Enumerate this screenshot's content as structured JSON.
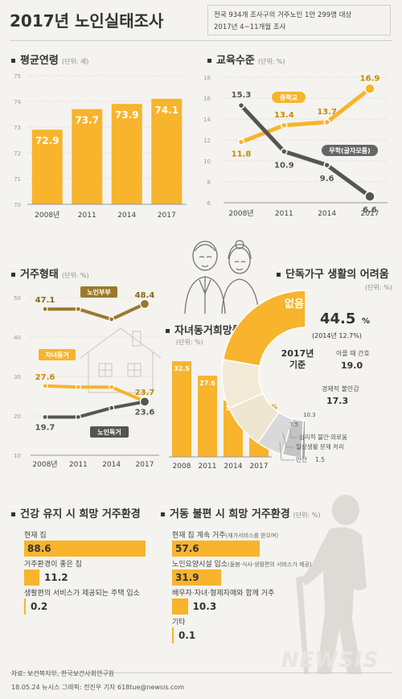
{
  "header": {
    "title": "2017년 노인실태조사",
    "note_line1": "전국 934개 조사구의 거주노인 1만 299명 대상",
    "note_line2": "2017년 4~11개월 조사"
  },
  "colors": {
    "accent": "#f7b42c",
    "dark": "#555555",
    "brown": "#9a7a2a",
    "gray": "#c8c8c8"
  },
  "sections": {
    "age": {
      "title": "평균연령",
      "unit": "(단위: 세)"
    },
    "education": {
      "title": "교육수준",
      "unit": "(단위: %)"
    },
    "residence": {
      "title": "거주형태",
      "unit": "(단위: %)"
    },
    "cohabit": {
      "title": "자녀동거희망률",
      "unit": "(단위: %)"
    },
    "difficulty": {
      "title": "단독가구 생활의 어려움",
      "unit": "(단위: %)"
    },
    "healthy": {
      "title": "건강 유지 시 희망 거주환경"
    },
    "impaired": {
      "title": "거동 불편 시 희망 거주환경",
      "unit": "(단위: %)"
    }
  },
  "chart_data": [
    {
      "id": "age",
      "type": "bar",
      "title": "평균연령",
      "unit": "(단위: 세)",
      "categories": [
        "2008년",
        "2011",
        "2014",
        "2017"
      ],
      "values": [
        72.9,
        73.7,
        73.9,
        74.1
      ],
      "value_labels": [
        "72.9",
        "73.7",
        "73.9",
        "74.1"
      ],
      "ylim": [
        70,
        75
      ],
      "yticks": [
        "70",
        "71",
        "72",
        "73",
        "74",
        "75"
      ]
    },
    {
      "id": "education",
      "type": "line",
      "title": "교육수준",
      "unit": "(단위: %)",
      "categories": [
        "2008년",
        "2011",
        "2014",
        "2017"
      ],
      "ylim": [
        6,
        18
      ],
      "yticks": [
        "6",
        "8",
        "10",
        "12",
        "14",
        "16",
        "18"
      ],
      "series": [
        {
          "name": "중학교",
          "values": [
            11.8,
            13.4,
            13.7,
            16.9
          ],
          "labels": [
            "11.8",
            "13.4",
            "13.7",
            "16.9"
          ]
        },
        {
          "name": "무학(글자모름)",
          "values": [
            15.3,
            10.9,
            9.6,
            6.6
          ],
          "labels": [
            "15.3",
            "10.9",
            "9.6",
            "6.6"
          ]
        }
      ]
    },
    {
      "id": "residence",
      "type": "line",
      "title": "거주형태",
      "unit": "(단위: %)",
      "categories": [
        "2008년",
        "2011",
        "2014",
        "2017"
      ],
      "ylim": [
        10,
        50
      ],
      "yticks": [
        "10",
        "20",
        "30",
        "40",
        "50"
      ],
      "series": [
        {
          "name": "노인부부",
          "values": [
            47.1,
            47.1,
            44.5,
            48.4
          ],
          "labels": [
            "47.1",
            "",
            "",
            "48.4"
          ]
        },
        {
          "name": "자녀동거",
          "values": [
            27.6,
            27.3,
            27.3,
            23.7
          ],
          "labels": [
            "27.6",
            "",
            "",
            "23.7"
          ]
        },
        {
          "name": "노인독거",
          "values": [
            19.7,
            19.7,
            22.0,
            23.6
          ],
          "labels": [
            "19.7",
            "",
            "",
            "23.6"
          ]
        }
      ]
    },
    {
      "id": "cohabit",
      "type": "bar",
      "title": "자녀동거희망률",
      "unit": "(단위: %)",
      "categories": [
        "2008",
        "2011",
        "2014",
        "2017"
      ],
      "values": [
        32.5,
        27.6,
        19.1,
        15.2
      ],
      "value_labels": [
        "32.5",
        "27.6",
        "19.1",
        "15.2"
      ],
      "value_suffix": "%",
      "ylim": [
        0,
        35
      ]
    },
    {
      "id": "difficulty",
      "type": "pie",
      "title": "단독가구 생활의 어려움",
      "unit": "(단위: %)",
      "center_label": [
        "2017년",
        "기준"
      ],
      "slices": [
        {
          "label": "없음",
          "value": 44.5,
          "value_label": "44.5",
          "suffix": "%",
          "note": "(2014년 12.7%)"
        },
        {
          "label": "아플 때 간호",
          "value": 19.0,
          "value_label": "19.0"
        },
        {
          "label": "경제적 불안감",
          "value": 17.3,
          "value_label": "17.3"
        },
        {
          "label": "심리적 불안·외로움",
          "value": 10.3,
          "value_label": "10.3"
        },
        {
          "label": "일상생활 문제 처리",
          "value": 7.5,
          "value_label": "7.5"
        },
        {
          "label": "안전",
          "value": 1.5,
          "value_label": "1.5"
        }
      ]
    },
    {
      "id": "healthy",
      "type": "bar",
      "title": "건강 유지 시 희망 거주환경",
      "items": [
        {
          "label": "현재 집",
          "value": 88.6,
          "value_label": "88.6",
          "note": ""
        },
        {
          "label": "거주환경이 좋은 집",
          "value": 11.2,
          "value_label": "11.2",
          "note": ""
        },
        {
          "label": "생활편의 서비스가 제공되는 주택 입소",
          "value": 0.2,
          "value_label": "0.2",
          "note": ""
        }
      ]
    },
    {
      "id": "impaired",
      "type": "bar",
      "title": "거동 불편 시 희망 거주환경",
      "unit": "(단위: %)",
      "items": [
        {
          "label": "현재 집 계속 거주",
          "note": "(재가서비스를 받으며)",
          "value": 57.6,
          "value_label": "57.6"
        },
        {
          "label": "노인요양시설 입소",
          "note": "(돌봄·식사·생활편의 서비스가 제공)",
          "value": 31.9,
          "value_label": "31.9"
        },
        {
          "label": "배우자·자녀·형제자매와 함께 거주",
          "note": "",
          "value": 10.3,
          "value_label": "10.3"
        },
        {
          "label": "기타",
          "note": "",
          "value": 0.1,
          "value_label": "0.1"
        }
      ]
    }
  ],
  "footer": {
    "source": "자료: 보건복지부, 한국보건사회연구원",
    "credit": "18.05.24 뉴시스 그래픽: 전진우 기자 618tue@newsis.com",
    "logo": "NEWSIS"
  }
}
